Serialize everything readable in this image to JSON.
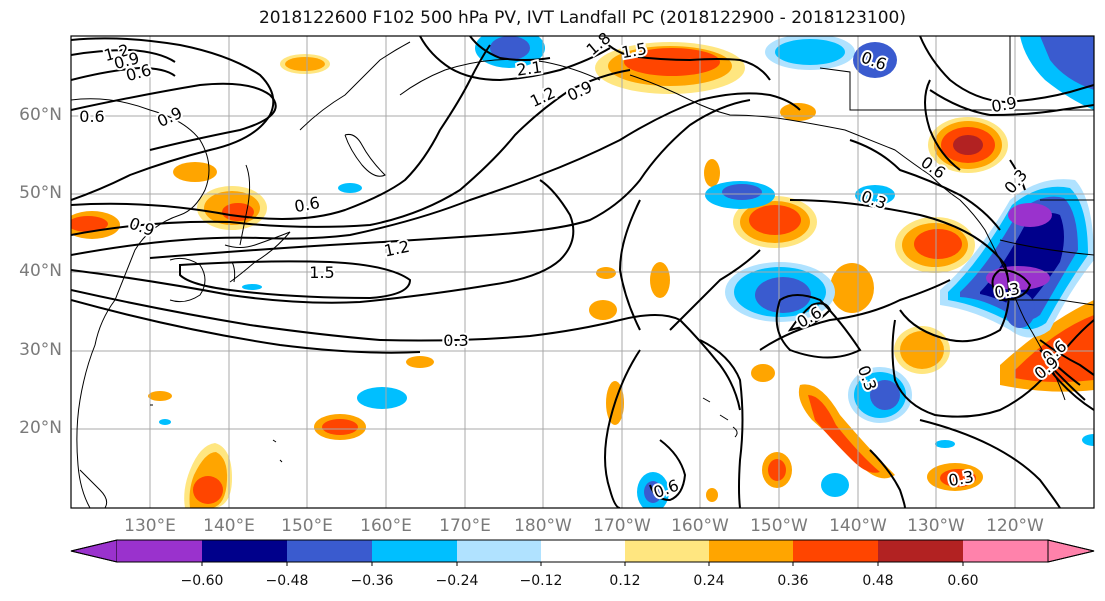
{
  "title": "2018122600 F102 500 hPa PV, IVT Landfall PC (2018122900 - 2018123100)",
  "latitude_labels": [
    "60°N",
    "50°N",
    "40°N",
    "30°N",
    "20°N"
  ],
  "longitude_labels": [
    "130°E",
    "140°E",
    "150°E",
    "160°E",
    "170°E",
    "180°W",
    "170°W",
    "160°W",
    "150°W",
    "140°W",
    "130°W",
    "120°W"
  ],
  "contour_labels": [
    "1.2",
    "0.9",
    "0.6",
    "0.6",
    "0.9",
    "0.9",
    "0.6",
    "1.5",
    "1.2",
    "0.3",
    "2.1",
    "1.2",
    "0.9",
    "1.8",
    "1.5",
    "0.6",
    "0.9",
    "0.3",
    "0.6",
    "0.3",
    "0.6",
    "0.3",
    "0.3",
    "0.6",
    "0.9",
    "0.3",
    "0.6"
  ],
  "colorbar": {
    "tick_labels": [
      "−0.60",
      "−0.48",
      "−0.36",
      "−0.24",
      "−0.12",
      "0.12",
      "0.24",
      "0.36",
      "0.48",
      "0.60"
    ],
    "colors": [
      "#9a32cd",
      "#00008b",
      "#3a5bcf",
      "#00bfff",
      "#b0e2ff",
      "#ffffff",
      "#ffe680",
      "#ffa500",
      "#ff4500",
      "#b22222",
      "#ff82ab"
    ]
  },
  "fill_colors": {
    "neg_outer": "#b0e2ff",
    "neg_1": "#00bfff",
    "neg_2": "#3a5bcf",
    "neg_3": "#00008b",
    "neg_4": "#9a32cd",
    "pos_outer": "#ffe680",
    "pos_1": "#ffa500",
    "pos_2": "#ff4500",
    "pos_3": "#b22222"
  }
}
